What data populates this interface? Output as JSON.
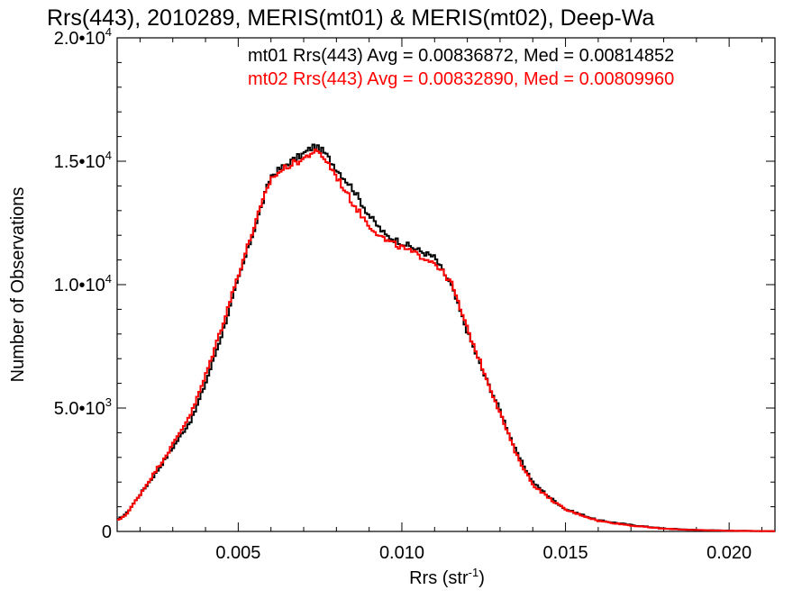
{
  "chart_data": {
    "type": "line",
    "title": "Rrs(443), 2010289, MERIS(mt01) & MERIS(mt02), Deep-Wa",
    "xlabel": "Rrs (str",
    "xlabel_sup": "-1",
    "xlabel_tail": ")",
    "ylabel": "Number of Observations",
    "xlim": [
      0.0013,
      0.0214
    ],
    "ylim": [
      0,
      20000
    ],
    "x_ticks": [
      {
        "value": 0.005,
        "label": "0.005"
      },
      {
        "value": 0.01,
        "label": "0.010"
      },
      {
        "value": 0.015,
        "label": "0.015"
      },
      {
        "value": 0.02,
        "label": "0.020"
      }
    ],
    "y_ticks": [
      {
        "value": 0,
        "mant": "0",
        "exp": ""
      },
      {
        "value": 5000,
        "mant": "5.0•10",
        "exp": "3"
      },
      {
        "value": 10000,
        "mant": "1.0•10",
        "exp": "4"
      },
      {
        "value": 15000,
        "mant": "1.5•10",
        "exp": "4"
      },
      {
        "value": 20000,
        "mant": "2.0•10",
        "exp": "4"
      }
    ],
    "series": [
      {
        "label": "mt01 Rrs(443) Avg = 0.00836872, Med = 0.00814852",
        "color": "#000000",
        "anchors": [
          [
            0.0013,
            450
          ],
          [
            0.0016,
            750
          ],
          [
            0.002,
            1500
          ],
          [
            0.0025,
            2400
          ],
          [
            0.0029,
            3200
          ],
          [
            0.0033,
            4000
          ],
          [
            0.0036,
            4600
          ],
          [
            0.004,
            6000
          ],
          [
            0.0045,
            8000
          ],
          [
            0.005,
            10200
          ],
          [
            0.0055,
            12300
          ],
          [
            0.006,
            14400
          ],
          [
            0.0065,
            14900
          ],
          [
            0.007,
            15300
          ],
          [
            0.0073,
            15600
          ],
          [
            0.0076,
            15400
          ],
          [
            0.008,
            14700
          ],
          [
            0.0085,
            13900
          ],
          [
            0.009,
            12800
          ],
          [
            0.0095,
            12000
          ],
          [
            0.01,
            11700
          ],
          [
            0.0105,
            11400
          ],
          [
            0.011,
            11100
          ],
          [
            0.0115,
            10000
          ],
          [
            0.012,
            8100
          ],
          [
            0.0125,
            6400
          ],
          [
            0.013,
            4900
          ],
          [
            0.0135,
            3200
          ],
          [
            0.014,
            2000
          ],
          [
            0.0145,
            1400
          ],
          [
            0.015,
            900
          ],
          [
            0.016,
            450
          ],
          [
            0.017,
            260
          ],
          [
            0.018,
            120
          ],
          [
            0.019,
            60
          ],
          [
            0.02,
            30
          ],
          [
            0.0214,
            10
          ]
        ]
      },
      {
        "label": "mt02 Rrs(443) Avg = 0.00832890, Med = 0.00809960",
        "color": "#ff0000",
        "anchors": [
          [
            0.0013,
            420
          ],
          [
            0.0016,
            720
          ],
          [
            0.002,
            1500
          ],
          [
            0.0025,
            2500
          ],
          [
            0.0029,
            3300
          ],
          [
            0.0033,
            4200
          ],
          [
            0.0036,
            4900
          ],
          [
            0.004,
            6300
          ],
          [
            0.0045,
            8300
          ],
          [
            0.005,
            10400
          ],
          [
            0.0055,
            12400
          ],
          [
            0.006,
            14300
          ],
          [
            0.0065,
            14800
          ],
          [
            0.007,
            15100
          ],
          [
            0.0073,
            15400
          ],
          [
            0.0076,
            15200
          ],
          [
            0.008,
            14400
          ],
          [
            0.0085,
            13300
          ],
          [
            0.009,
            12400
          ],
          [
            0.0095,
            11800
          ],
          [
            0.01,
            11500
          ],
          [
            0.0105,
            11200
          ],
          [
            0.011,
            10900
          ],
          [
            0.0115,
            10100
          ],
          [
            0.012,
            8200
          ],
          [
            0.0125,
            6500
          ],
          [
            0.013,
            4800
          ],
          [
            0.0135,
            3100
          ],
          [
            0.014,
            1900
          ],
          [
            0.0145,
            1350
          ],
          [
            0.015,
            880
          ],
          [
            0.016,
            430
          ],
          [
            0.017,
            240
          ],
          [
            0.018,
            110
          ],
          [
            0.019,
            55
          ],
          [
            0.02,
            28
          ],
          [
            0.0214,
            8
          ]
        ]
      }
    ],
    "grid": false,
    "legend": "top-right"
  }
}
